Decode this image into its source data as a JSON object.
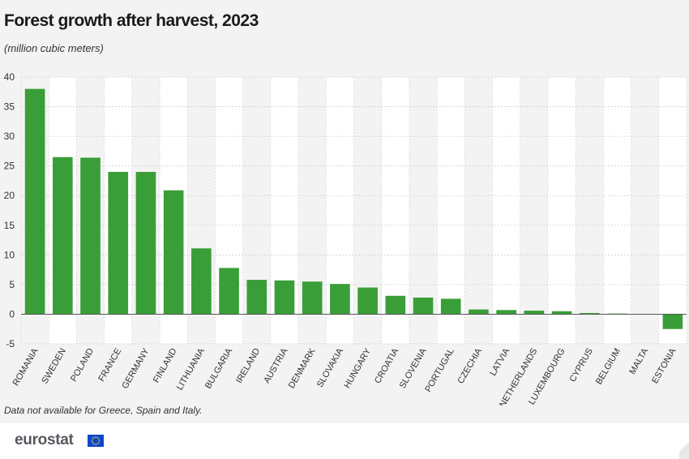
{
  "header": {
    "title": "Forest growth after harvest, 2023",
    "subtitle": "(million cubic meters)"
  },
  "note": "Data not available for Greece, Spain and Italy.",
  "footer": {
    "brand": "eurostat"
  },
  "colors": {
    "bar": "#3a9e38",
    "background": "#f3f3f3",
    "band": "#ffffff",
    "grid": "#cfcfcf",
    "flag": "#0e47cb",
    "stars": "#ffd700"
  },
  "chart_data": {
    "type": "bar",
    "title": "Forest growth after harvest, 2023",
    "subtitle": "(million cubic meters)",
    "xlabel": "",
    "ylabel": "",
    "ylim": [
      -5,
      40
    ],
    "yticks": [
      -5,
      0,
      5,
      10,
      15,
      20,
      25,
      30,
      35,
      40
    ],
    "grid": true,
    "categories": [
      "ROMANIA",
      "SWEDEN",
      "POLAND",
      "FRANCE",
      "GERMANY",
      "FINLAND",
      "LITHUANIA",
      "BULGARIA",
      "IRELAND",
      "AUSTRIA",
      "DENMARK",
      "SLOVAKIA",
      "HUNGARY",
      "CROATIA",
      "SLOVENIA",
      "PORTUGAL",
      "CZECHIA",
      "LATVIA",
      "NETHERLANDS",
      "LUXEMBOURG",
      "CYPRUS",
      "BELGIUM",
      "MALTA",
      "ESTONIA"
    ],
    "values": [
      38,
      26.5,
      26.4,
      24,
      24,
      20.9,
      11.1,
      7.8,
      5.8,
      5.7,
      5.5,
      5.1,
      4.5,
      3.1,
      2.8,
      2.6,
      0.8,
      0.7,
      0.6,
      0.5,
      0.2,
      0.1,
      0,
      -2.5
    ]
  }
}
